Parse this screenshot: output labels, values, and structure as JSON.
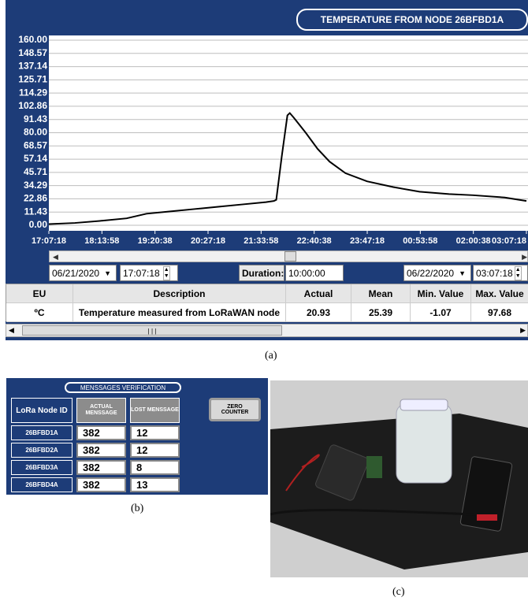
{
  "chart_data": {
    "type": "line",
    "title": "TEMPERATURE FROM NODE 26BFBD1A",
    "x": [
      "17:07:18",
      "17:40:00",
      "18:15:00",
      "18:45:00",
      "19:10:00",
      "19:40:00",
      "20:10:00",
      "20:40:00",
      "21:10:00",
      "21:40:00",
      "21:50:00",
      "21:53:00",
      "22:00:00",
      "22:07:00",
      "22:10:00",
      "22:15:00",
      "22:30:00",
      "22:45:00",
      "23:00:00",
      "23:20:00",
      "23:47:00",
      "00:20:00",
      "00:53:00",
      "01:30:00",
      "02:00:00",
      "02:40:00",
      "03:07:18"
    ],
    "values": [
      1,
      2,
      4,
      6,
      10,
      12,
      14,
      16,
      18,
      20,
      21,
      22,
      60,
      95,
      97,
      93,
      80,
      66,
      55,
      45,
      38,
      33,
      29,
      27,
      26,
      24,
      21
    ],
    "color": "#000000",
    "xlim": [
      "17:07:18",
      "03:07:18"
    ],
    "xticks": [
      "17:07:18",
      "18:13:58",
      "19:20:38",
      "20:27:18",
      "21:33:58",
      "22:40:38",
      "23:47:18",
      "00:53:58",
      "02:00:38",
      "03:07:18"
    ],
    "ylim": [
      0,
      160
    ],
    "yticks": [
      {
        "value": 0,
        "label": "0.00"
      },
      11.43,
      22.86,
      34.29,
      45.71,
      57.14,
      68.57,
      {
        "value": 80,
        "label": "80.00"
      },
      91.43,
      102.86,
      114.29,
      125.71,
      137.14,
      148.57,
      {
        "value": 160,
        "label": "160.00"
      }
    ],
    "grid": true
  },
  "controls": {
    "start_date": "06/21/2020",
    "start_time": "17:07:18",
    "duration_label": "Duration:",
    "duration": "10:00:00",
    "end_date": "06/22/2020",
    "end_time": "03:07:18"
  },
  "summary_table": {
    "header": [
      "EU",
      "Description",
      "Actual",
      "Mean",
      "Min. Value",
      "Max. Value"
    ],
    "rows": [
      [
        "ºC",
        "Temperature measured from LoRaWAN node",
        20.93,
        25.39,
        -1.07,
        97.68
      ]
    ]
  },
  "messages_panel": {
    "title": "MENSSAGES VERIFICATION",
    "header": [
      "LoRa Node ID",
      "ACTUAL MENSSAGE",
      "LOST MENSSAGE"
    ],
    "rows": [
      [
        "26BFBD1A",
        382,
        12
      ],
      [
        "26BFBD2A",
        382,
        12
      ],
      [
        "26BFBD3A",
        382,
        8
      ],
      [
        "26BFBD4A",
        382,
        13
      ]
    ],
    "button": "ZERO COUNTER"
  },
  "captions": [
    "(a)",
    "(b)",
    "(c)"
  ]
}
